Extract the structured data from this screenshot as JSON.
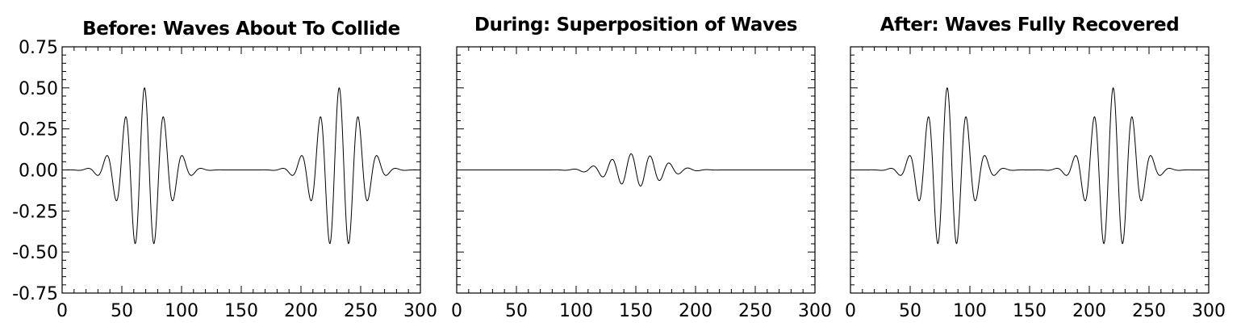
{
  "chart_data": [
    {
      "type": "line",
      "title": "Before: Waves About To Collide",
      "xlabel": "",
      "ylabel": "",
      "xlim": [
        0,
        300
      ],
      "ylim": [
        -0.75,
        0.75
      ],
      "xticks": [
        "0",
        "50",
        "100",
        "150",
        "200",
        "250",
        "300"
      ],
      "yticks": [
        "0.75",
        "0.50",
        "0.25",
        "0.00",
        "-0.25",
        "-0.50",
        "-0.75"
      ],
      "show_yticklabels": true,
      "grid": false,
      "series": [
        {
          "packets": [
            {
              "center": 69,
              "amplitude": 0.5,
              "wavelength": 16,
              "width": 24
            },
            {
              "center": 232,
              "amplitude": 0.5,
              "wavelength": 16,
              "width": 24
            }
          ]
        }
      ]
    },
    {
      "type": "line",
      "title": "During: Superposition of Waves",
      "xlabel": "",
      "ylabel": "",
      "xlim": [
        0,
        300
      ],
      "ylim": [
        -0.75,
        0.75
      ],
      "xticks": [
        "0",
        "50",
        "100",
        "150",
        "200",
        "250",
        "300"
      ],
      "yticks": [],
      "show_yticklabels": false,
      "grid": false,
      "series": [
        {
          "packets": [
            {
              "center": 150,
              "amplitude": 0.1,
              "wavelength": 16,
              "width": 30,
              "phase_shift": 0.5
            }
          ],
          "clip_max": 0.1
        }
      ]
    },
    {
      "type": "line",
      "title": "After: Waves Fully Recovered",
      "xlabel": "",
      "ylabel": "",
      "xlim": [
        0,
        300
      ],
      "ylim": [
        -0.75,
        0.75
      ],
      "xticks": [
        "0",
        "50",
        "100",
        "150",
        "200",
        "250",
        "300"
      ],
      "yticks": [],
      "show_yticklabels": false,
      "grid": false,
      "series": [
        {
          "packets": [
            {
              "center": 81,
              "amplitude": 0.5,
              "wavelength": 16,
              "width": 24
            },
            {
              "center": 220,
              "amplitude": 0.5,
              "wavelength": 16,
              "width": 24
            }
          ]
        }
      ]
    }
  ]
}
